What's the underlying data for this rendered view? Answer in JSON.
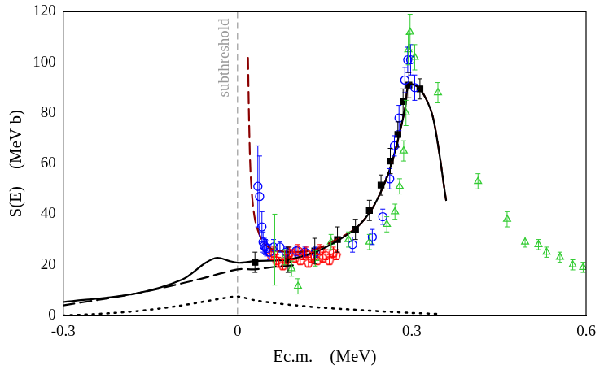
{
  "chart_data": {
    "type": "scatter",
    "x_label": "Ec.m.    (MeV)",
    "y_label": "S(E)    (MeV b)",
    "xlim": [
      -0.3,
      0.6
    ],
    "xticks": [
      -0.3,
      0,
      0.3,
      0.6
    ],
    "ylim": [
      0,
      120
    ],
    "yticks": [
      0,
      20,
      40,
      60,
      80,
      100,
      120
    ],
    "grid": false,
    "annotations": [
      {
        "text": "subthreshold",
        "x": 0
      }
    ],
    "series": [
      {
        "type": "line",
        "color": "#000000",
        "line_style": "solid",
        "x": [
          -0.3,
          -0.177,
          -0.095,
          -0.055,
          -0.035,
          -0.014,
          0.003,
          0.03,
          0.084,
          0.131,
          0.171,
          0.205,
          0.232,
          0.252,
          0.265,
          0.279,
          0.289,
          0.295,
          0.314,
          0.336,
          0.359
        ],
        "values": [
          5.3,
          8.6,
          14.2,
          20.8,
          22.8,
          21.5,
          20.8,
          21.5,
          22,
          24.8,
          29.4,
          34.7,
          42.3,
          51.6,
          59.8,
          72,
          82.6,
          91.2,
          89.6,
          78.7,
          45.6
        ]
      },
      {
        "type": "line",
        "color": "#000000",
        "line_style": "dashed",
        "x": [
          -0.3,
          -0.177,
          -0.068,
          0,
          0.03,
          0.064,
          0.097
        ],
        "values": [
          4,
          8.6,
          14.2,
          18.2,
          18.2,
          19.2,
          19.8
        ]
      },
      {
        "type": "line",
        "color": "#000000",
        "line_style": "dotted",
        "x": [
          -0.3,
          -0.25,
          -0.2,
          -0.15,
          -0.1,
          -0.05,
          -0.02,
          0,
          0.03,
          0.06,
          0.1,
          0.15,
          0.2,
          0.25,
          0.3,
          0.35
        ],
        "values": [
          0,
          0.5,
          1.2,
          2.3,
          3.8,
          5.8,
          7,
          7.5,
          6,
          5,
          4,
          3,
          2.3,
          1.6,
          1,
          0.6
        ]
      },
      {
        "type": "line",
        "color": "#8b0000",
        "line_style": "dashed",
        "x": [
          0.018,
          0.02,
          0.023,
          0.03,
          0.044,
          0.064,
          0.097,
          0.131,
          0.171,
          0.205,
          0.232,
          0.252,
          0.265,
          0.279,
          0.289,
          0.295,
          0.314,
          0.336,
          0.359
        ],
        "values": [
          101.8,
          75.4,
          53.9,
          38,
          29,
          25.8,
          25.1,
          25.8,
          30.1,
          34.7,
          42.3,
          51.6,
          59.8,
          72,
          82.6,
          91.2,
          89.6,
          78.7,
          45.6
        ]
      },
      {
        "type": "scatter",
        "color": "#0000ff",
        "marker": "circle",
        "x": [
          0.035,
          0.038,
          0.042,
          0.044,
          0.046,
          0.048,
          0.05,
          0.055,
          0.062,
          0.073,
          0.084,
          0.101,
          0.116,
          0.134,
          0.198,
          0.232,
          0.25,
          0.262,
          0.27,
          0.278,
          0.288,
          0.293,
          0.298,
          0.305
        ],
        "values": [
          51,
          47,
          35,
          29,
          27.5,
          27,
          26.5,
          25,
          27,
          27,
          25,
          25.5,
          25,
          25,
          28,
          31,
          39,
          54,
          67,
          78,
          93,
          101,
          101,
          90
        ],
        "errors": [
          16,
          16,
          6,
          4,
          3,
          3,
          3,
          3,
          3,
          2,
          2,
          2,
          2,
          2,
          3,
          3,
          3,
          4,
          4,
          5,
          5,
          5,
          6,
          5
        ]
      },
      {
        "type": "scatter",
        "color": "#ff0000",
        "marker": "pentagon",
        "x": [
          0.058,
          0.062,
          0.067,
          0.071,
          0.078,
          0.083,
          0.089,
          0.094,
          0.099,
          0.104,
          0.108,
          0.113,
          0.118,
          0.122,
          0.127,
          0.132,
          0.137,
          0.142,
          0.147,
          0.152,
          0.158,
          0.165,
          0.17
        ],
        "values": [
          24,
          25,
          22,
          21,
          20,
          22,
          25,
          24,
          23,
          26,
          22,
          24,
          25,
          21,
          23,
          24,
          22,
          26,
          23,
          24,
          22,
          25,
          24
        ],
        "errors": [
          2,
          2,
          2,
          2,
          2,
          2,
          2,
          2,
          2,
          2,
          2,
          2,
          2,
          2,
          2,
          2,
          2,
          2,
          2,
          2,
          2,
          2,
          2
        ]
      },
      {
        "type": "scatter",
        "color": "#33cc33",
        "marker": "triangle",
        "x": [
          0.064,
          0.081,
          0.093,
          0.104,
          0.134,
          0.161,
          0.191,
          0.227,
          0.257,
          0.271,
          0.279,
          0.286,
          0.29,
          0.294,
          0.297,
          0.305,
          0.345,
          0.414,
          0.464,
          0.495,
          0.518,
          0.532,
          0.555,
          0.577,
          0.595
        ],
        "values": [
          26,
          23,
          18.5,
          11.5,
          22.5,
          29,
          30,
          29,
          36,
          41,
          51,
          65,
          80,
          105,
          112,
          102,
          88,
          53,
          38,
          29,
          28,
          25,
          23,
          20,
          19
        ],
        "errors": [
          14,
          3,
          3,
          3,
          3,
          3,
          3,
          3,
          3,
          3,
          3,
          4,
          5,
          6,
          7,
          5,
          4,
          3,
          3,
          2,
          2,
          2,
          2,
          2,
          2
        ]
      },
      {
        "type": "scatter",
        "color": "#000000",
        "marker": "square",
        "x": [
          0.03,
          0.087,
          0.133,
          0.172,
          0.203,
          0.227,
          0.247,
          0.263,
          0.276,
          0.285,
          0.295,
          0.314
        ],
        "values": [
          21,
          22,
          25.5,
          30,
          34,
          41.5,
          51.5,
          61,
          71.5,
          84.5,
          91,
          89.5
        ],
        "errors": [
          4,
          5,
          5,
          5,
          4,
          4,
          4,
          5,
          5,
          5,
          5,
          4
        ]
      }
    ]
  }
}
